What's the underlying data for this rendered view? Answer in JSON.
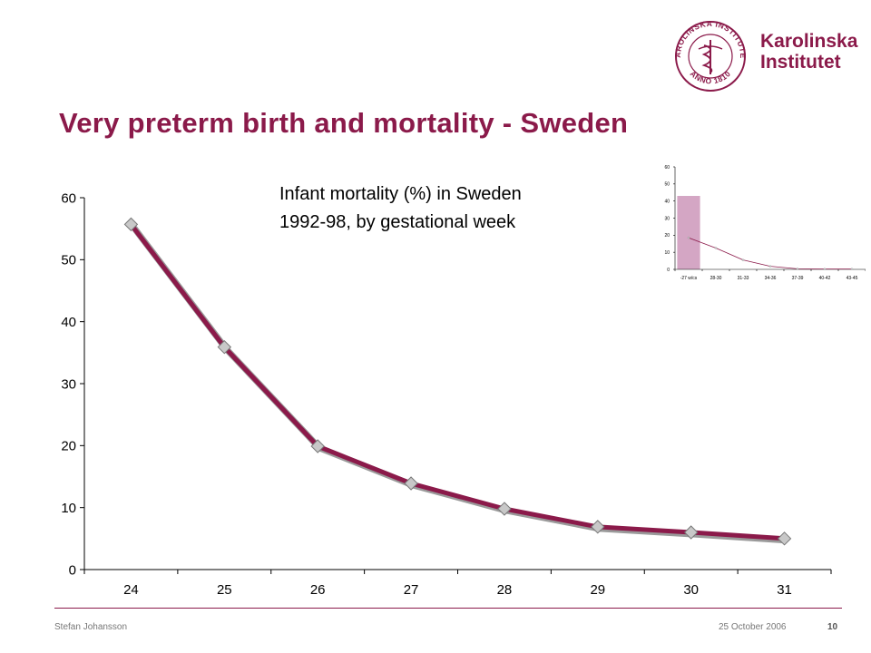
{
  "slide": {
    "title": "Very preterm birth and mortality - Sweden",
    "annotation_line1": "Infant mortality (%) in Sweden",
    "annotation_line2": "1992-98, by gestational week"
  },
  "logo": {
    "name_line1": "Karolinska",
    "name_line2": "Institutet",
    "seal_text": "KAROLINSKA INSTITUTET",
    "seal_year": "ANNO 1810",
    "color": "#8b1a4a"
  },
  "footer": {
    "author": "Stefan Johansson",
    "date": "25 October 2006",
    "page": "10"
  },
  "colors": {
    "accent": "#8b1a4a",
    "series_line": "#8b1a4a",
    "marker_fill": "#c8c8c8",
    "inset_highlight": "#d4a6c4"
  },
  "chart_data": [
    {
      "type": "line",
      "x": [
        "24",
        "25",
        "26",
        "27",
        "28",
        "29",
        "30",
        "31"
      ],
      "series": [
        {
          "values": [
            55.7,
            35.9,
            19.9,
            13.9,
            9.8,
            6.9,
            6.0,
            5.0
          ]
        }
      ],
      "yticks": [
        "0",
        "10",
        "20",
        "30",
        "40",
        "50",
        "60"
      ],
      "ylim": [
        0,
        60
      ],
      "grid": false,
      "legend": "none",
      "marker": "diamond"
    },
    {
      "type": "line",
      "x": [
        "-27 w/cs",
        "28-30",
        "31-33",
        "34-36",
        "37-39",
        "40-42",
        "43-45"
      ],
      "series": [
        {
          "values": [
            18.5,
            12.5,
            5.5,
            1.8,
            0.3,
            0.2,
            0.2
          ]
        }
      ],
      "yticks": [
        "0",
        "10",
        "20",
        "30",
        "40",
        "50",
        "60"
      ],
      "ylim": [
        0,
        60
      ],
      "highlight": {
        "category": "-27 w/cs",
        "value": 43
      },
      "grid": false,
      "legend": "none"
    }
  ]
}
